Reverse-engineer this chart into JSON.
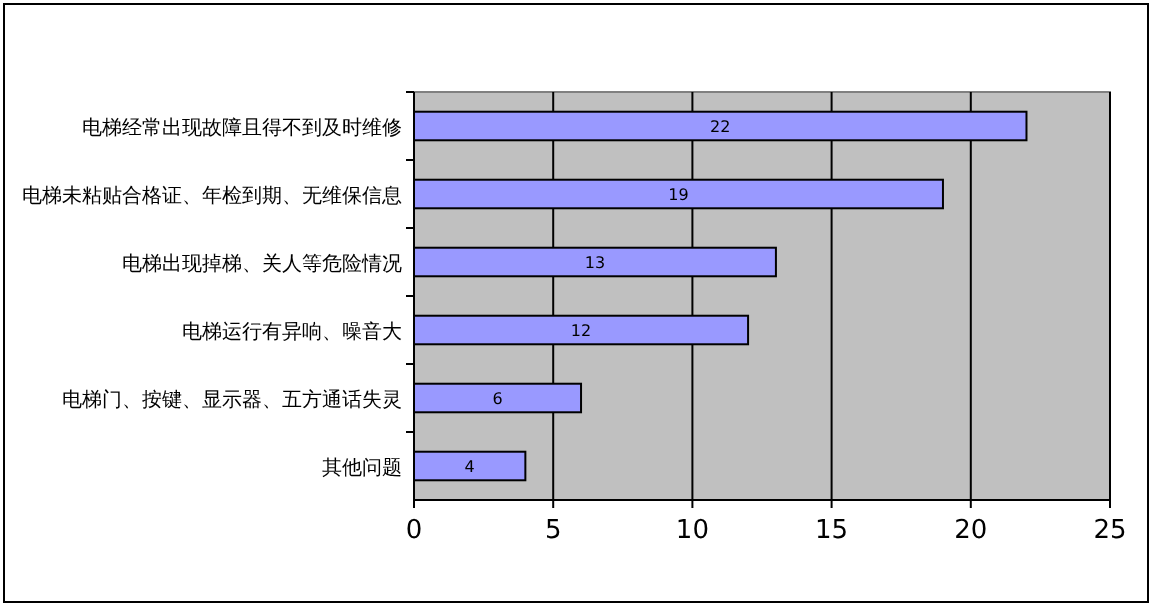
{
  "chart_data": {
    "type": "bar",
    "orientation": "horizontal",
    "categories": [
      "电梯经常出现故障且得不到及时维修",
      "电梯未粘贴合格证、年检到期、无维保信息",
      "电梯出现掉梯、关人等危险情况",
      "电梯运行有异响、噪音大",
      "电梯门、按键、显示器、五方通话失灵",
      "其他问题"
    ],
    "values": [
      22,
      19,
      13,
      12,
      6,
      4
    ],
    "color": "#9999ff",
    "xlim": [
      0,
      25
    ],
    "xticks": [
      0,
      5,
      10,
      15,
      20,
      25
    ],
    "grid": "x",
    "data_labels": true
  }
}
